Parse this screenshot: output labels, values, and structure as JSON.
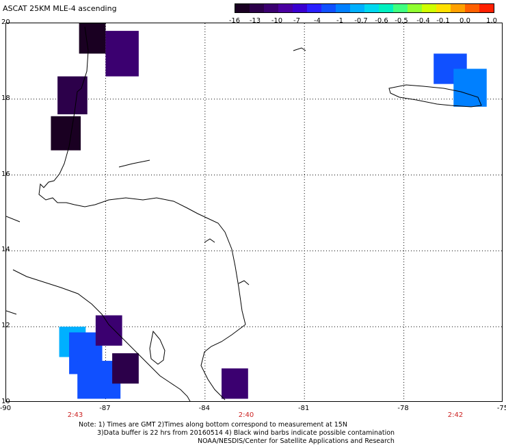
{
  "title": "ASCAT 25KM MLE-4 ascending",
  "colorbar": {
    "colors": [
      "#1a0022",
      "#2c004a",
      "#3b0070",
      "#4a00a0",
      "#3a00d0",
      "#2a20ff",
      "#1050ff",
      "#0080ff",
      "#00b0ff",
      "#00d8f0",
      "#00f0c0",
      "#40ff80",
      "#90ff30",
      "#d0ff00",
      "#ffe000",
      "#ffa000",
      "#ff6000",
      "#ff2000"
    ],
    "tick_labels": [
      "-16",
      "-13",
      "-10",
      "-7",
      "-4",
      "-1",
      "-0.7",
      "-0.6",
      "-0.5",
      "-0.4",
      "-0.1",
      "0.0",
      "1.0"
    ]
  },
  "lat_labels": [
    "20",
    "18",
    "16",
    "14",
    "12",
    "10"
  ],
  "lon_labels": [
    "-90",
    "-87",
    "-84",
    "-81",
    "-78",
    "-75"
  ],
  "time_labels": [
    "2:43",
    "2:40",
    "2:42"
  ],
  "notes": {
    "line1": "Note: 1) Times are GMT 2)Times along bottom correspond to measurement at 15N",
    "line2": "3)Data buffer is 22 hrs from 20160514 4) Black wind barbs indicate possible contamination",
    "line3": "NOAA/NESDIS/Center for Satellite Applications and Research"
  },
  "map": {
    "lon_range": [
      -90,
      -75
    ],
    "lat_range": [
      10,
      20
    ],
    "data_cells": [
      {
        "lon": -87.4,
        "lat": 19.6,
        "w": 0.8,
        "h": 0.8,
        "color": "#1a0022"
      },
      {
        "lon": -86.5,
        "lat": 19.2,
        "w": 1.0,
        "h": 1.2,
        "color": "#3b0070"
      },
      {
        "lon": -88.0,
        "lat": 18.1,
        "w": 0.9,
        "h": 1.0,
        "color": "#2c004a"
      },
      {
        "lon": -88.2,
        "lat": 17.1,
        "w": 0.9,
        "h": 0.9,
        "color": "#1a0022"
      },
      {
        "lon": -76.6,
        "lat": 18.8,
        "w": 1.0,
        "h": 0.8,
        "color": "#1050ff"
      },
      {
        "lon": -76.0,
        "lat": 18.3,
        "w": 1.0,
        "h": 1.0,
        "color": "#0080ff"
      },
      {
        "lon": -88.0,
        "lat": 11.6,
        "w": 0.8,
        "h": 0.8,
        "color": "#00b0ff"
      },
      {
        "lon": -87.6,
        "lat": 11.3,
        "w": 1.0,
        "h": 1.1,
        "color": "#1050ff"
      },
      {
        "lon": -86.9,
        "lat": 11.9,
        "w": 0.8,
        "h": 0.8,
        "color": "#3b0070"
      },
      {
        "lon": -87.2,
        "lat": 10.6,
        "w": 1.3,
        "h": 1.0,
        "color": "#1050ff"
      },
      {
        "lon": -86.4,
        "lat": 10.9,
        "w": 0.8,
        "h": 0.8,
        "color": "#2c004a"
      },
      {
        "lon": -83.1,
        "lat": 10.5,
        "w": 0.8,
        "h": 0.8,
        "color": "#3b0070"
      }
    ]
  }
}
